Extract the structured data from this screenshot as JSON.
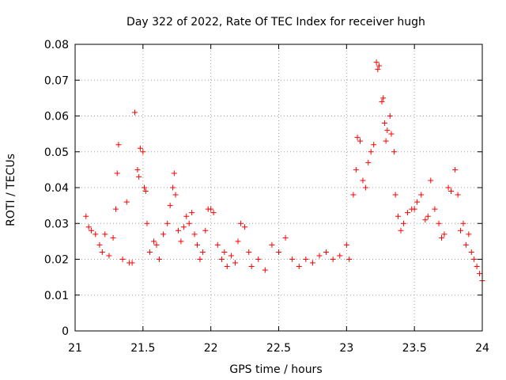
{
  "chart_data": {
    "type": "scatter",
    "title": "Day 322 of 2022, Rate Of TEC Index for receiver hugh",
    "xlabel": "GPS time / hours",
    "ylabel": "ROTI / TECUs",
    "xlim": [
      21,
      24
    ],
    "ylim": [
      0,
      0.08
    ],
    "xticks": [
      21,
      21.5,
      22,
      22.5,
      23,
      23.5,
      24
    ],
    "xtick_labels": [
      "21",
      "21.5",
      "22",
      "22.5",
      "23",
      "23.5",
      "24"
    ],
    "yticks": [
      0,
      0.01,
      0.02,
      0.03,
      0.04,
      0.05,
      0.06,
      0.07,
      0.08
    ],
    "ytick_labels": [
      "0",
      "0.01",
      "0.02",
      "0.03",
      "0.04",
      "0.05",
      "0.06",
      "0.07",
      "0.08"
    ],
    "grid": true,
    "marker": "+",
    "color": "#ff0000",
    "series": [
      {
        "name": "ROTI",
        "points": [
          [
            21.08,
            0.032
          ],
          [
            21.1,
            0.029
          ],
          [
            21.12,
            0.028
          ],
          [
            21.15,
            0.027
          ],
          [
            21.18,
            0.024
          ],
          [
            21.2,
            0.022
          ],
          [
            21.22,
            0.027
          ],
          [
            21.25,
            0.021
          ],
          [
            21.28,
            0.026
          ],
          [
            21.3,
            0.034
          ],
          [
            21.31,
            0.044
          ],
          [
            21.32,
            0.052
          ],
          [
            21.35,
            0.02
          ],
          [
            21.38,
            0.036
          ],
          [
            21.4,
            0.019
          ],
          [
            21.42,
            0.019
          ],
          [
            21.44,
            0.061
          ],
          [
            21.46,
            0.045
          ],
          [
            21.47,
            0.043
          ],
          [
            21.48,
            0.051
          ],
          [
            21.5,
            0.05
          ],
          [
            21.51,
            0.04
          ],
          [
            21.52,
            0.039
          ],
          [
            21.53,
            0.03
          ],
          [
            21.55,
            0.022
          ],
          [
            21.58,
            0.025
          ],
          [
            21.6,
            0.024
          ],
          [
            21.62,
            0.02
          ],
          [
            21.65,
            0.027
          ],
          [
            21.68,
            0.03
          ],
          [
            21.7,
            0.035
          ],
          [
            21.72,
            0.04
          ],
          [
            21.73,
            0.044
          ],
          [
            21.74,
            0.038
          ],
          [
            21.76,
            0.028
          ],
          [
            21.78,
            0.025
          ],
          [
            21.8,
            0.029
          ],
          [
            21.82,
            0.032
          ],
          [
            21.84,
            0.03
          ],
          [
            21.86,
            0.033
          ],
          [
            21.88,
            0.027
          ],
          [
            21.9,
            0.024
          ],
          [
            21.92,
            0.02
          ],
          [
            21.94,
            0.022
          ],
          [
            21.96,
            0.028
          ],
          [
            21.98,
            0.034
          ],
          [
            22.0,
            0.034
          ],
          [
            22.02,
            0.033
          ],
          [
            22.05,
            0.024
          ],
          [
            22.08,
            0.02
          ],
          [
            22.1,
            0.022
          ],
          [
            22.12,
            0.018
          ],
          [
            22.15,
            0.021
          ],
          [
            22.18,
            0.019
          ],
          [
            22.2,
            0.025
          ],
          [
            22.22,
            0.03
          ],
          [
            22.25,
            0.029
          ],
          [
            22.28,
            0.022
          ],
          [
            22.3,
            0.018
          ],
          [
            22.35,
            0.02
          ],
          [
            22.4,
            0.017
          ],
          [
            22.45,
            0.024
          ],
          [
            22.5,
            0.022
          ],
          [
            22.55,
            0.026
          ],
          [
            22.6,
            0.02
          ],
          [
            22.65,
            0.018
          ],
          [
            22.7,
            0.02
          ],
          [
            22.75,
            0.019
          ],
          [
            22.8,
            0.021
          ],
          [
            22.85,
            0.022
          ],
          [
            22.9,
            0.02
          ],
          [
            22.95,
            0.021
          ],
          [
            23.0,
            0.024
          ],
          [
            23.02,
            0.02
          ],
          [
            23.05,
            0.038
          ],
          [
            23.07,
            0.045
          ],
          [
            23.08,
            0.054
          ],
          [
            23.1,
            0.053
          ],
          [
            23.12,
            0.042
          ],
          [
            23.14,
            0.04
          ],
          [
            23.16,
            0.047
          ],
          [
            23.18,
            0.05
          ],
          [
            23.2,
            0.052
          ],
          [
            23.22,
            0.075
          ],
          [
            23.23,
            0.073
          ],
          [
            23.24,
            0.074
          ],
          [
            23.26,
            0.064
          ],
          [
            23.27,
            0.065
          ],
          [
            23.28,
            0.058
          ],
          [
            23.29,
            0.053
          ],
          [
            23.3,
            0.056
          ],
          [
            23.32,
            0.06
          ],
          [
            23.33,
            0.055
          ],
          [
            23.35,
            0.05
          ],
          [
            23.36,
            0.038
          ],
          [
            23.38,
            0.032
          ],
          [
            23.4,
            0.028
          ],
          [
            23.42,
            0.03
          ],
          [
            23.45,
            0.033
          ],
          [
            23.48,
            0.034
          ],
          [
            23.5,
            0.034
          ],
          [
            23.52,
            0.036
          ],
          [
            23.55,
            0.038
          ],
          [
            23.58,
            0.031
          ],
          [
            23.6,
            0.032
          ],
          [
            23.62,
            0.042
          ],
          [
            23.65,
            0.034
          ],
          [
            23.68,
            0.03
          ],
          [
            23.7,
            0.026
          ],
          [
            23.72,
            0.027
          ],
          [
            23.75,
            0.04
          ],
          [
            23.77,
            0.039
          ],
          [
            23.8,
            0.045
          ],
          [
            23.82,
            0.038
          ],
          [
            23.84,
            0.028
          ],
          [
            23.86,
            0.03
          ],
          [
            23.88,
            0.024
          ],
          [
            23.9,
            0.027
          ],
          [
            23.92,
            0.022
          ],
          [
            23.94,
            0.02
          ],
          [
            23.96,
            0.018
          ],
          [
            23.98,
            0.016
          ],
          [
            24.0,
            0.014
          ]
        ]
      }
    ]
  }
}
